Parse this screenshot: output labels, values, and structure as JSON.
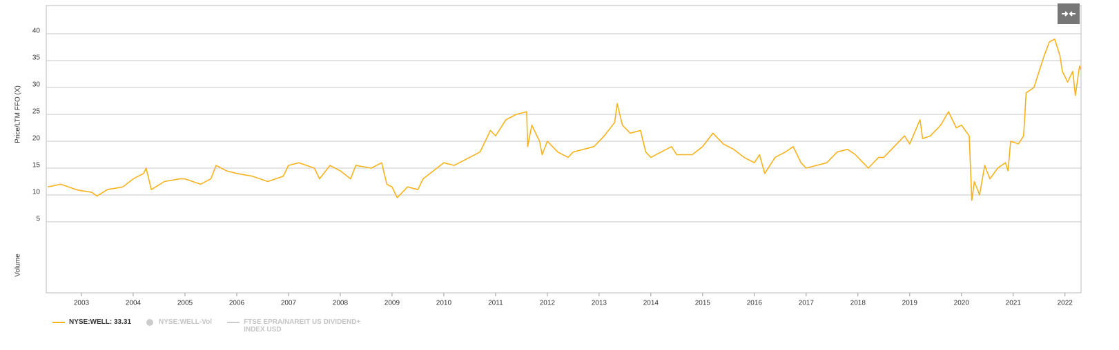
{
  "chart_data": {
    "type": "line",
    "ylabel": "Price/LTM FFO (X)",
    "volume_label": "Volume",
    "xlim": [
      2002.32,
      2022.31
    ],
    "xticks": [
      2003,
      2004,
      2005,
      2006,
      2007,
      2008,
      2009,
      2010,
      2011,
      2012,
      2013,
      2014,
      2015,
      2016,
      2017,
      2018,
      2019,
      2020,
      2021,
      2022
    ],
    "ylim": [
      0,
      45.26
    ],
    "yticks": [
      5,
      10,
      15,
      20,
      25,
      30,
      35,
      40
    ],
    "grid": true,
    "x": [
      2002.35,
      2002.6,
      2002.9,
      2003.0,
      2003.2,
      2003.3,
      2003.5,
      2003.8,
      2004.0,
      2004.2,
      2004.25,
      2004.35,
      2004.6,
      2004.9,
      2005.0,
      2005.3,
      2005.5,
      2005.6,
      2005.8,
      2006.0,
      2006.3,
      2006.6,
      2006.9,
      2007.0,
      2007.2,
      2007.5,
      2007.6,
      2007.8,
      2008.0,
      2008.2,
      2008.3,
      2008.6,
      2008.8,
      2008.9,
      2009.0,
      2009.1,
      2009.3,
      2009.5,
      2009.6,
      2009.8,
      2010.0,
      2010.2,
      2010.5,
      2010.7,
      2010.8,
      2010.9,
      2011.0,
      2011.2,
      2011.4,
      2011.6,
      2011.62,
      2011.7,
      2011.85,
      2011.9,
      2012.0,
      2012.2,
      2012.4,
      2012.5,
      2012.7,
      2012.9,
      2013.1,
      2013.3,
      2013.35,
      2013.45,
      2013.6,
      2013.8,
      2013.9,
      2014.0,
      2014.2,
      2014.4,
      2014.5,
      2014.8,
      2015.0,
      2015.2,
      2015.4,
      2015.6,
      2015.8,
      2016.0,
      2016.1,
      2016.2,
      2016.4,
      2016.6,
      2016.75,
      2016.9,
      2017.0,
      2017.2,
      2017.4,
      2017.6,
      2017.8,
      2017.95,
      2018.1,
      2018.2,
      2018.4,
      2018.5,
      2018.7,
      2018.9,
      2019.0,
      2019.2,
      2019.25,
      2019.4,
      2019.6,
      2019.75,
      2019.9,
      2020.0,
      2020.15,
      2020.2,
      2020.25,
      2020.35,
      2020.45,
      2020.55,
      2020.7,
      2020.85,
      2020.9,
      2020.95,
      2021.1,
      2021.2,
      2021.25,
      2021.4,
      2021.5,
      2021.6,
      2021.7,
      2021.8,
      2021.9,
      2021.95,
      2022.0,
      2022.05,
      2022.15,
      2022.2,
      2022.28,
      2022.31
    ],
    "series": [
      {
        "name": "NYSE:WELL: 33.31",
        "color": "#f5b21b",
        "values": [
          11.5,
          12,
          11,
          10.8,
          10.5,
          9.8,
          11,
          11.5,
          13,
          14,
          15,
          11,
          12.5,
          13,
          13,
          12,
          13,
          15.5,
          14.5,
          14,
          13.5,
          12.5,
          13.5,
          15.5,
          16,
          15,
          13,
          15.5,
          14.5,
          13,
          15.5,
          15,
          16,
          12,
          11.5,
          9.5,
          11.5,
          11,
          13,
          14.5,
          16,
          15.5,
          17,
          18,
          20,
          22,
          21,
          24,
          25,
          25.5,
          19,
          23,
          20,
          17.5,
          20,
          18,
          17,
          18,
          18.5,
          19,
          21,
          23.5,
          27,
          23,
          21.5,
          22,
          18,
          17,
          18,
          19,
          17.5,
          17.5,
          19,
          21.5,
          19.5,
          18.5,
          17,
          16,
          17.5,
          14,
          17,
          18,
          19,
          16,
          15,
          15.5,
          16,
          18,
          18.5,
          17.5,
          16,
          15,
          17,
          17,
          19,
          21,
          19.5,
          24,
          20.5,
          21,
          23,
          25.5,
          22.5,
          23,
          21,
          9,
          12.5,
          10,
          15.5,
          13,
          15,
          16,
          14.5,
          20,
          19.5,
          21,
          29,
          30,
          33,
          36,
          38.5,
          39,
          36,
          33,
          32,
          31,
          33,
          28.5,
          34,
          33.3
        ]
      }
    ],
    "legend_inactive": [
      "NYSE:WELL-Vol",
      "FTSE EPRA/NAREIT US DIVIDEND+ INDEX USD"
    ]
  }
}
